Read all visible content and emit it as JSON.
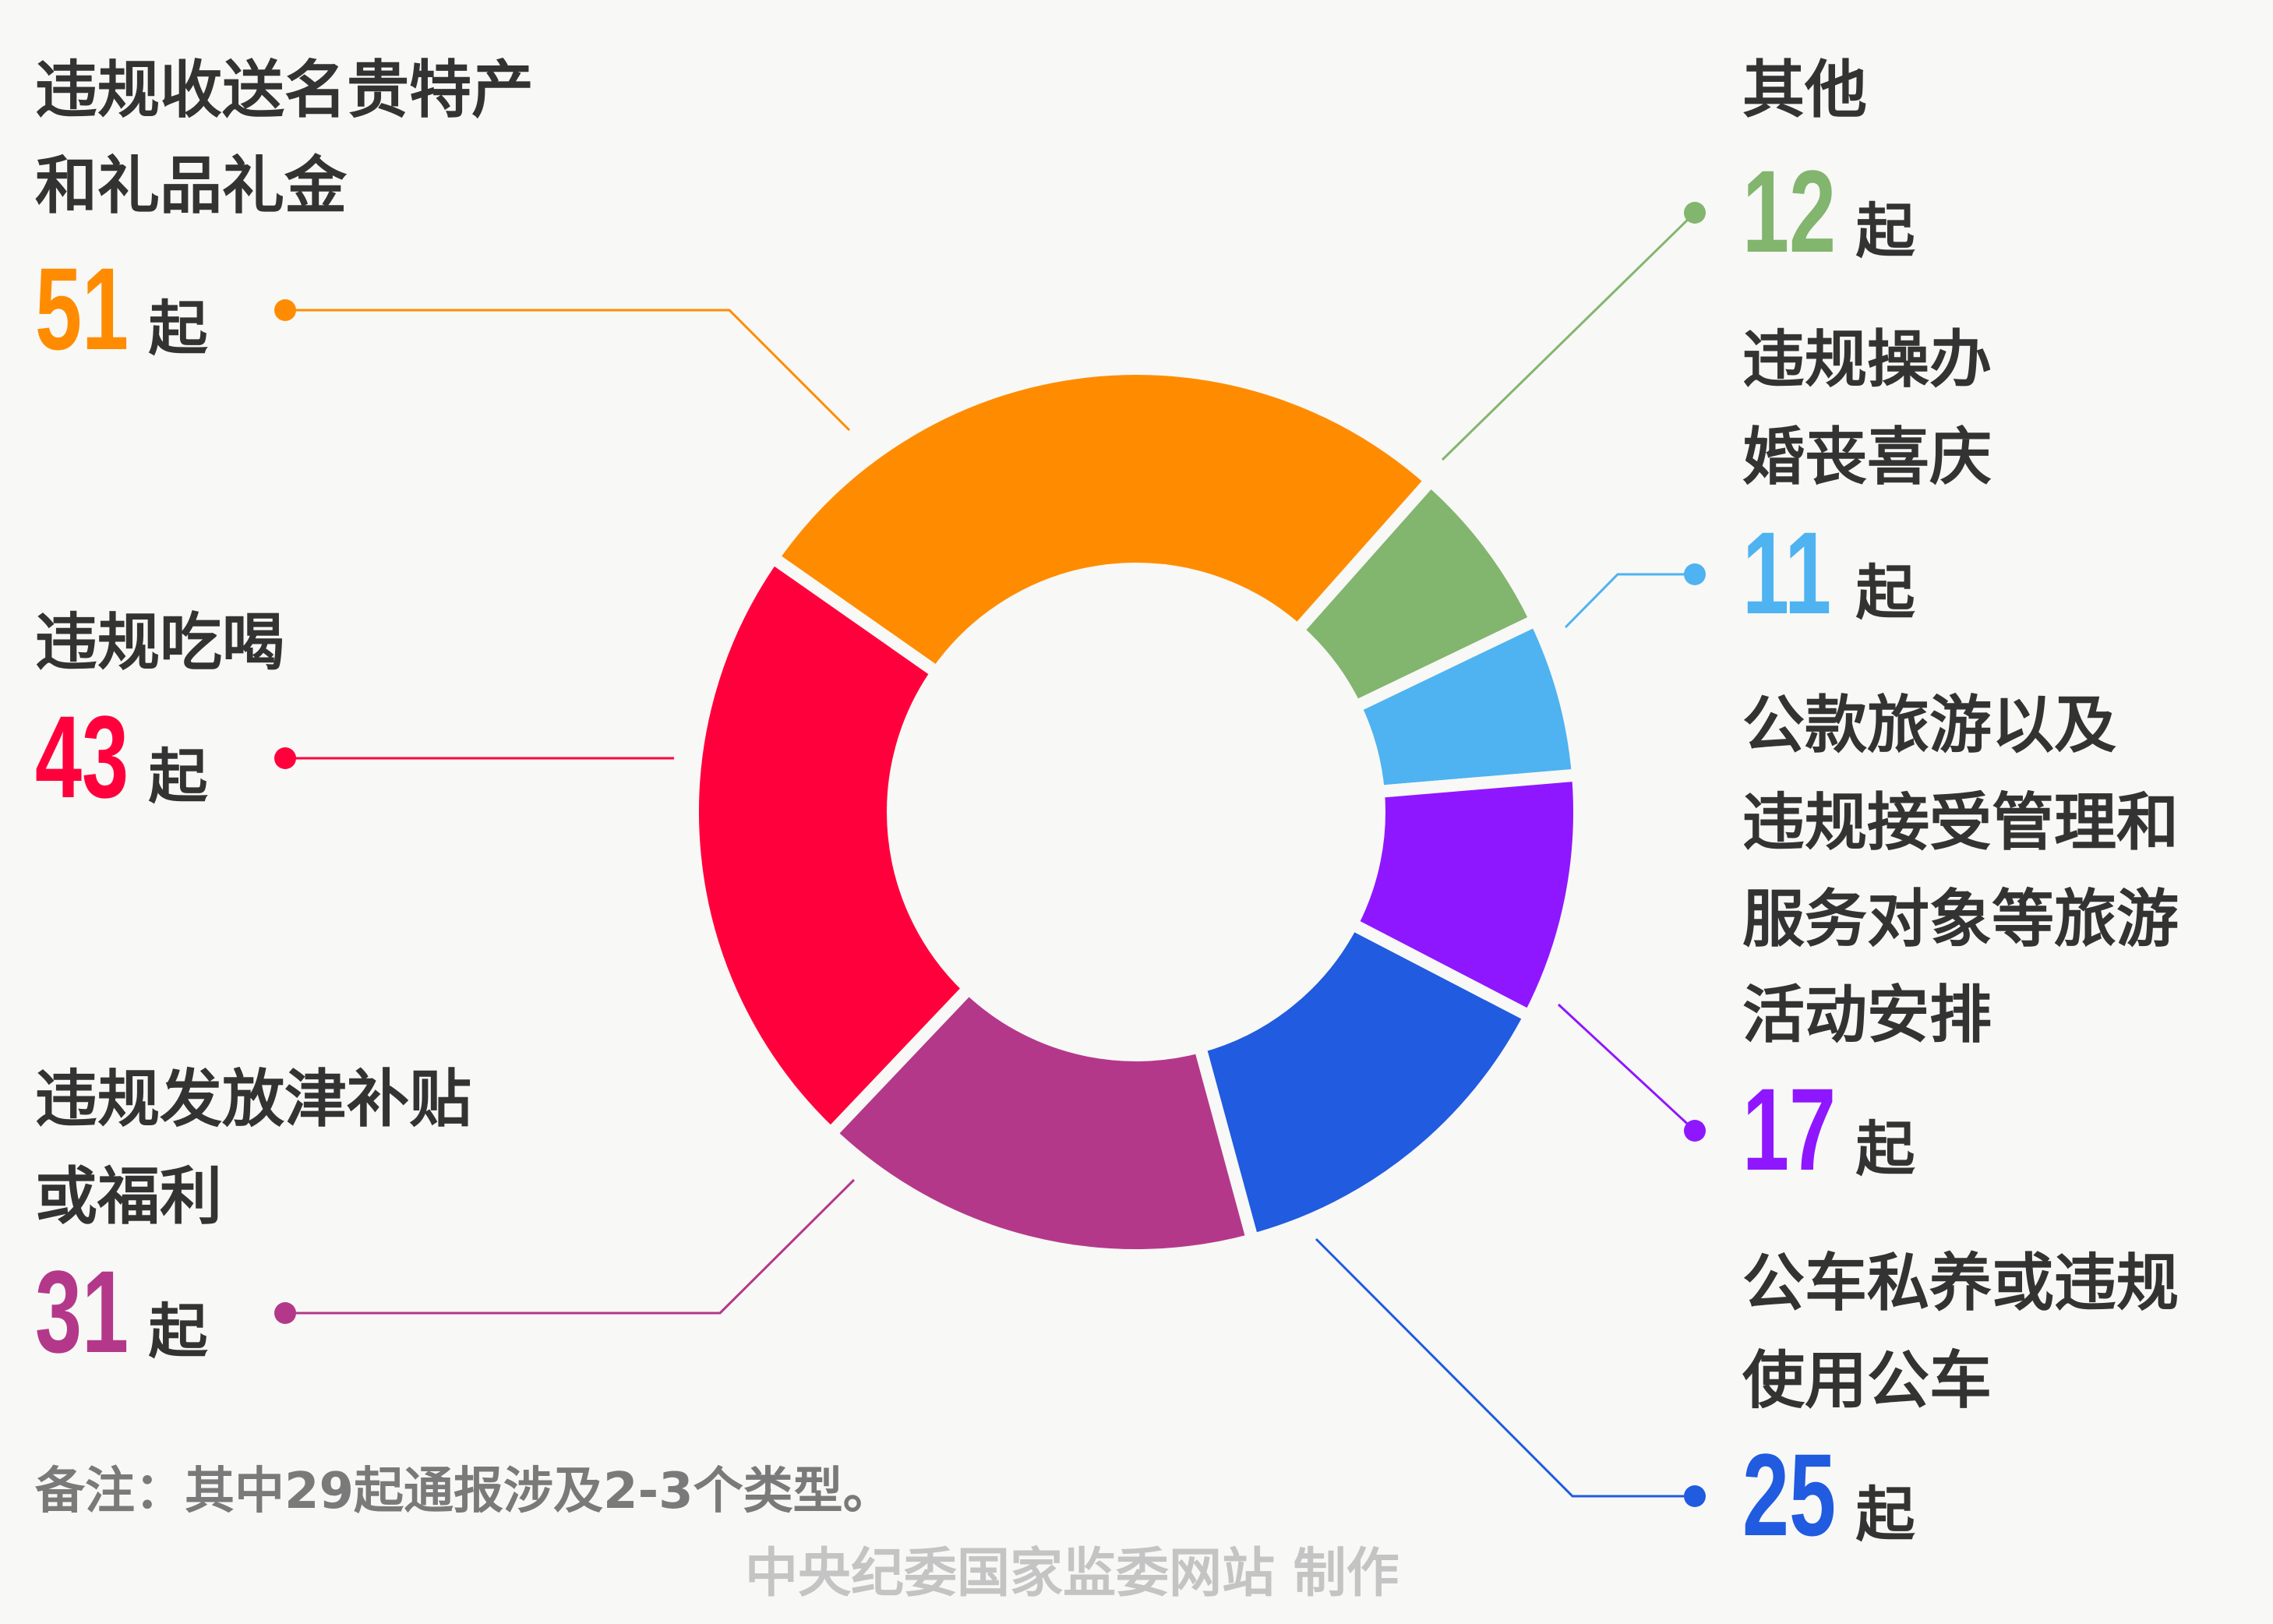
{
  "chart_data": {
    "type": "pie",
    "style": "donut",
    "unit": "起",
    "slices": [
      {
        "label_lines": [
          "违规收送名贵特产",
          "和礼品礼金"
        ],
        "value": 51,
        "color": "#FF8C00"
      },
      {
        "label_lines": [
          "其他"
        ],
        "value": 12,
        "color": "#82B56E"
      },
      {
        "label_lines": [
          "违规操办",
          "婚丧喜庆"
        ],
        "value": 11,
        "color": "#4EB3F0"
      },
      {
        "label_lines": [
          "公款旅游以及",
          "违规接受管理和",
          "服务对象等旅游",
          "活动安排"
        ],
        "value": 17,
        "color": "#8F17FF"
      },
      {
        "label_lines": [
          "公车私养或违规",
          "使用公车"
        ],
        "value": 25,
        "color": "#205BE0"
      },
      {
        "label_lines": [
          "违规发放津补贴",
          "或福利"
        ],
        "value": 31,
        "color": "#B4388A"
      },
      {
        "label_lines": [
          "违规吃喝"
        ],
        "value": 43,
        "color": "#FF003C"
      }
    ]
  },
  "footnote": "备注：其中29起通报涉及2-3个类型。",
  "credit": "中央纪委国家监委网站 制作"
}
